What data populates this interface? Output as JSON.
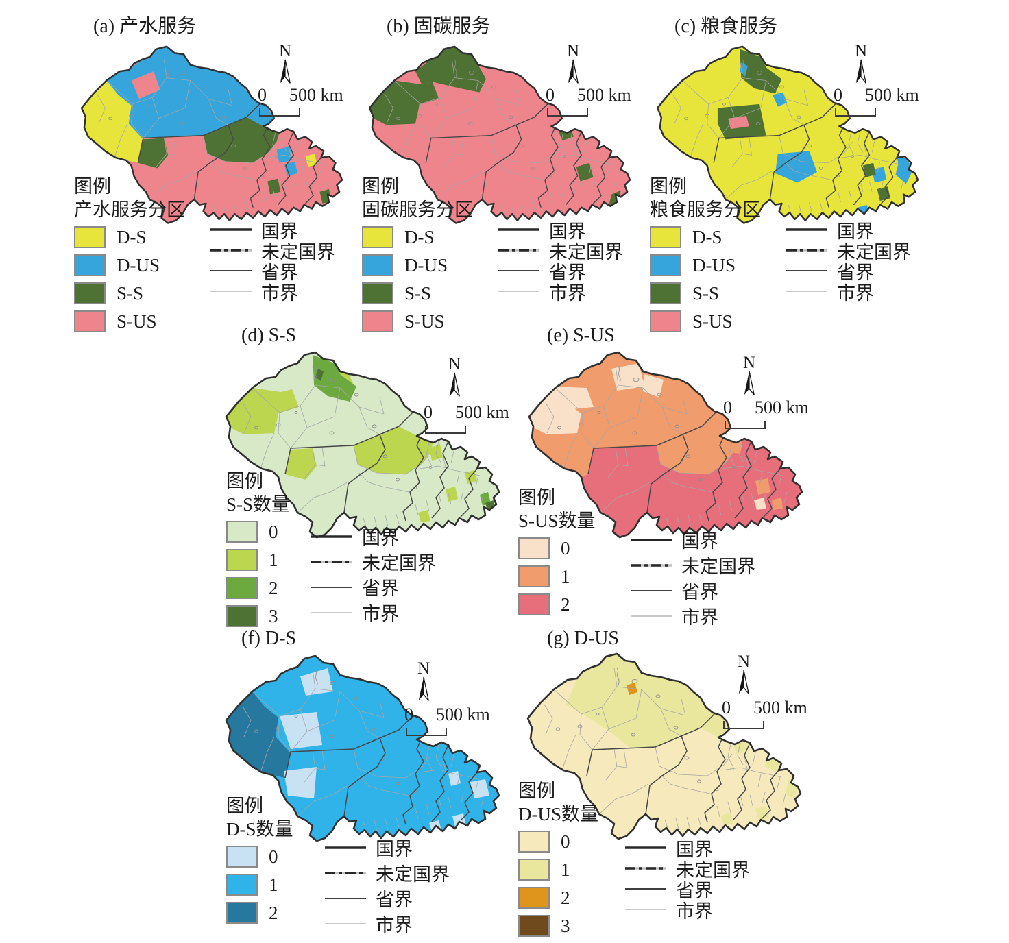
{
  "shared": {
    "legend_title": "图例",
    "north_label": "N",
    "scale_start": "0",
    "scale_end": "500 km",
    "boundary_legend": [
      {
        "label": "国界",
        "style": "national"
      },
      {
        "label": "未定国界",
        "style": "undefined_national"
      },
      {
        "label": "省界",
        "style": "province"
      },
      {
        "label": "市界",
        "style": "city"
      }
    ],
    "boundary_colors": {
      "national": "#303030",
      "undefined_national": "#303030",
      "province": "#474747",
      "city": "#a6a6a6"
    }
  },
  "panels": [
    {
      "id": "a",
      "title": "(a) 产水服务",
      "legend_subtitle": "产水服务分区",
      "classes": [
        {
          "label": "D-S",
          "color": "#e7e43c"
        },
        {
          "label": "D-US",
          "color": "#36a5db"
        },
        {
          "label": "S-S",
          "color": "#4d7233"
        },
        {
          "label": "S-US",
          "color": "#ee858c"
        }
      ],
      "map": {
        "base": "S-US",
        "patches": [
          [
            "blob",
            "D-US"
          ],
          [
            "west_all",
            "D-S"
          ],
          [
            "mid_cell",
            "S-S"
          ],
          [
            "south_green",
            "S-S"
          ],
          [
            "nw_tip",
            "S-US"
          ],
          [
            "tail_blue_a1",
            "D-US"
          ],
          [
            "tail_blue_a2",
            "D-US"
          ],
          [
            "tail_yellow_a",
            "D-S"
          ],
          [
            "tail_green_a1",
            "S-S"
          ],
          [
            "tail_green_a2",
            "S-S"
          ],
          [
            "tail_green_a3",
            "S-S"
          ]
        ]
      }
    },
    {
      "id": "b",
      "title": "(b) 固碳服务",
      "legend_subtitle": "固碳服务分区",
      "classes": [
        {
          "label": "D-S",
          "color": "#e7e43c"
        },
        {
          "label": "D-US",
          "color": "#36a5db"
        },
        {
          "label": "S-S",
          "color": "#4d7233"
        },
        {
          "label": "S-US",
          "color": "#ee858c"
        }
      ],
      "map": {
        "base": "S-US",
        "patches": [
          [
            "altay_band",
            "S-S"
          ],
          [
            "nw_band",
            "S-S"
          ],
          [
            "west_tip",
            "S-S"
          ],
          [
            "tail_green_b1",
            "S-S"
          ],
          [
            "tail_green_b2",
            "S-S"
          ],
          [
            "tail_green_b3",
            "S-S"
          ]
        ]
      }
    },
    {
      "id": "c",
      "title": "(c) 粮食服务",
      "legend_subtitle": "粮食服务分区",
      "classes": [
        {
          "label": "D-S",
          "color": "#e7e43c"
        },
        {
          "label": "D-US",
          "color": "#36a5db"
        },
        {
          "label": "S-S",
          "color": "#4d7233"
        },
        {
          "label": "S-US",
          "color": "#ee858c"
        }
      ],
      "map": {
        "base": "D-S",
        "patches": [
          [
            "altay_mid",
            "S-S"
          ],
          [
            "lake_blue",
            "D-US"
          ],
          [
            "tiny_blue",
            "D-US"
          ],
          [
            "green2",
            "S-S"
          ],
          [
            "tiny_pink",
            "S-US"
          ],
          [
            "south_blue",
            "D-US"
          ],
          [
            "tail_blue_c1",
            "D-US"
          ],
          [
            "tail_blue_c2",
            "D-US"
          ],
          [
            "tail_blue_c3",
            "D-US"
          ],
          [
            "tail_green_c1",
            "S-S"
          ],
          [
            "tail_green_c2",
            "S-S"
          ]
        ]
      }
    },
    {
      "id": "d",
      "title": "(d) S-S",
      "legend_subtitle": "S-S数量",
      "classes": [
        {
          "label": "0",
          "color": "#d8e9c8"
        },
        {
          "label": "1",
          "color": "#bcd64f"
        },
        {
          "label": "2",
          "color": "#6caa40"
        },
        {
          "label": "3",
          "color": "#4d7233"
        }
      ],
      "map": {
        "base": "0",
        "patches": [
          [
            "nw_band",
            "1"
          ],
          [
            "west_tip",
            "1"
          ],
          [
            "altay_east",
            "1"
          ],
          [
            "altay_mid",
            "2"
          ],
          [
            "altay_dark",
            "3"
          ],
          [
            "mid_cell",
            "1"
          ],
          [
            "south_green",
            "1"
          ],
          [
            "tail_d1",
            "1"
          ],
          [
            "tail_d2",
            "1"
          ],
          [
            "tail_d3",
            "1"
          ],
          [
            "tail_d4",
            "1"
          ],
          [
            "tail_d5",
            "2"
          ],
          [
            "tail_d6",
            "3"
          ]
        ]
      }
    },
    {
      "id": "e",
      "title": "(e) S-US",
      "legend_subtitle": "S-US数量",
      "classes": [
        {
          "label": "0",
          "color": "#f9e1c9"
        },
        {
          "label": "1",
          "color": "#f19c6d"
        },
        {
          "label": "2",
          "color": "#e66f7b"
        }
      ],
      "map": {
        "base": "1",
        "patches": [
          [
            "south_and_tail",
            "2"
          ],
          [
            "tail_orange1",
            "1"
          ],
          [
            "tail_orange2",
            "1"
          ],
          [
            "tail_orange3",
            "1"
          ],
          [
            "tail_cream",
            "0"
          ],
          [
            "e_nw0",
            "0"
          ],
          [
            "e_lake0",
            "0"
          ],
          [
            "e_east0",
            "0"
          ],
          [
            "west_tip",
            "0"
          ]
        ]
      }
    },
    {
      "id": "f",
      "title": "(f) D-S",
      "legend_subtitle": "D-S数量",
      "classes": [
        {
          "label": "0",
          "color": "#c8e2f4"
        },
        {
          "label": "1",
          "color": "#2fb3e8"
        },
        {
          "label": "2",
          "color": "#27789f"
        }
      ],
      "map": {
        "base": "1",
        "patches": [
          [
            "west_all",
            "2"
          ],
          [
            "altay_lake_cell",
            "0"
          ],
          [
            "center0",
            "0"
          ],
          [
            "south_light",
            "0"
          ],
          [
            "tail_f1",
            "0"
          ],
          [
            "tail_f2",
            "0"
          ],
          [
            "tail_f3",
            "0"
          ],
          [
            "tail_f4",
            "0"
          ]
        ]
      }
    },
    {
      "id": "g",
      "title": "(g) D-US",
      "legend_subtitle": "D-US数量",
      "classes": [
        {
          "label": "0",
          "color": "#f6e9bc"
        },
        {
          "label": "1",
          "color": "#e9e79e"
        },
        {
          "label": "2",
          "color": "#df951c"
        },
        {
          "label": "3",
          "color": "#6f4a1d"
        }
      ],
      "map": {
        "base": "0",
        "patches": [
          [
            "north_blob",
            "1"
          ],
          [
            "tiny_orange",
            "2"
          ],
          [
            "tail_g1",
            "1"
          ],
          [
            "tail_g2",
            "1"
          ],
          [
            "tail_g3",
            "1"
          ],
          [
            "tail_g4",
            "1"
          ],
          [
            "tail_g5",
            "1"
          ]
        ]
      }
    }
  ]
}
